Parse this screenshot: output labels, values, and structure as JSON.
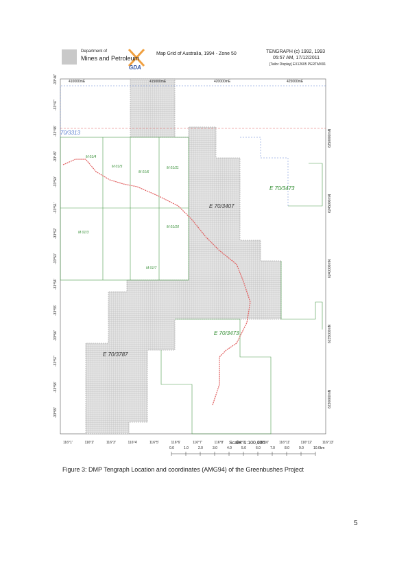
{
  "header": {
    "department_line1": "Department of",
    "department_line2": "Mines and Petroleum",
    "logo_text": "GDA",
    "map_title": "Map Grid of Australia, 1994 - Zone 50",
    "tengraph": "TENGRAPH (c) 1992, 1993",
    "timestamp": "05:57 AM, 17/12/2011",
    "display": "[Tailor Display] EX12605 PERTMX91"
  },
  "map": {
    "eastings": [
      "410000mE",
      "415000mE",
      "420000mE",
      "425000mE"
    ],
    "northings": [
      "6250000mN",
      "6245000mN",
      "6240000mN",
      "6235000mN",
      "6230000mN"
    ],
    "latitudes": [
      "-33°46'",
      "-33°47'",
      "-33°48'",
      "-33°49'",
      "-33°50'",
      "-33°51'",
      "-33°52'",
      "-33°53'",
      "-33°54'",
      "-33°55'",
      "-33°56'",
      "-33°57'",
      "-33°58'",
      "-33°59'"
    ],
    "longitudes": [
      "116°1'",
      "116°2'",
      "116°3'",
      "116°4'",
      "116°5'",
      "116°6'",
      "116°7'",
      "116°8'",
      "116°9'",
      "116°10'",
      "116°11'",
      "116°12'",
      "116°13'"
    ],
    "tenements": [
      "70/3313",
      "E 70/3407",
      "E 70/3473",
      "E 70/3473",
      "E 70/3787",
      "M 01/4",
      "M 01/5",
      "M 01/6",
      "M 01/11",
      "M 01/3",
      "M 01/10",
      "M 01/7"
    ],
    "scale_title": "Scale: 1:100,000",
    "scale_labels": [
      "0.0",
      "1.0",
      "2.0",
      "3.0",
      "4.0",
      "5.0",
      "6.0",
      "7.0",
      "8.0",
      "9.0",
      "10.0km"
    ]
  },
  "caption": "Figure 3:  DMP Tengraph Location and coordinates (AMG94) of the Greenbushes Project",
  "page_number": "5"
}
